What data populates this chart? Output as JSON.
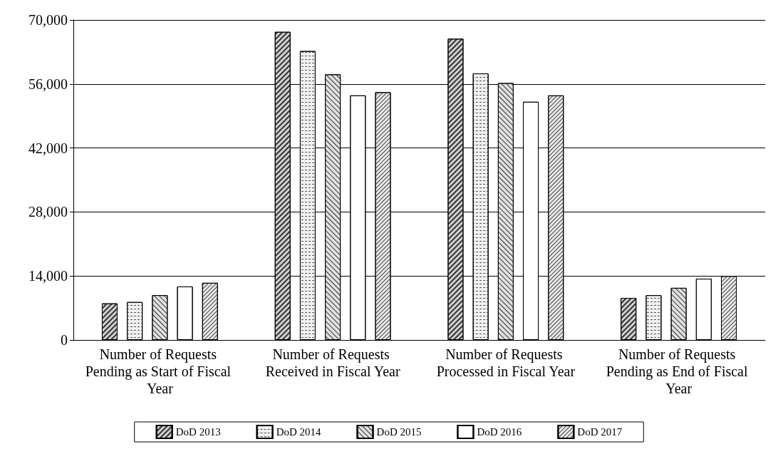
{
  "chart_data": {
    "type": "bar",
    "categories": [
      "Number of Requests Pending as Start of Fiscal Year",
      "Number of Requests Received in Fiscal Year",
      "Number of Requests Processed in Fiscal Year",
      "Number of Requests Pending as End of Fiscal Year"
    ],
    "series": [
      {
        "name": "DoD 2013",
        "color": "#d0d0d0",
        "values": [
          8000,
          67400,
          65900,
          9200
        ]
      },
      {
        "name": "DoD 2014",
        "color": "#f0f0f0",
        "values": [
          8300,
          63200,
          58300,
          9800
        ]
      },
      {
        "name": "DoD 2015",
        "color": "#e0e0e0",
        "values": [
          9800,
          58100,
          56200,
          11400
        ]
      },
      {
        "name": "DoD 2016",
        "color": "#ffffff",
        "values": [
          11700,
          53500,
          52100,
          13400
        ]
      },
      {
        "name": "DoD 2017",
        "color": "#e8e8e8",
        "values": [
          12500,
          54200,
          53500,
          14000
        ]
      }
    ],
    "ylim": [
      0,
      70000
    ],
    "yticks": [
      0,
      {
        "value": 14000,
        "label": "14,000"
      },
      {
        "value": 28000,
        "label": "28,000"
      },
      {
        "value": 42000,
        "label": "42,000"
      },
      {
        "value": 56000,
        "label": "56,000"
      },
      {
        "value": 70000,
        "label": "70,000"
      }
    ],
    "grid": "y",
    "legend": "bottom"
  }
}
